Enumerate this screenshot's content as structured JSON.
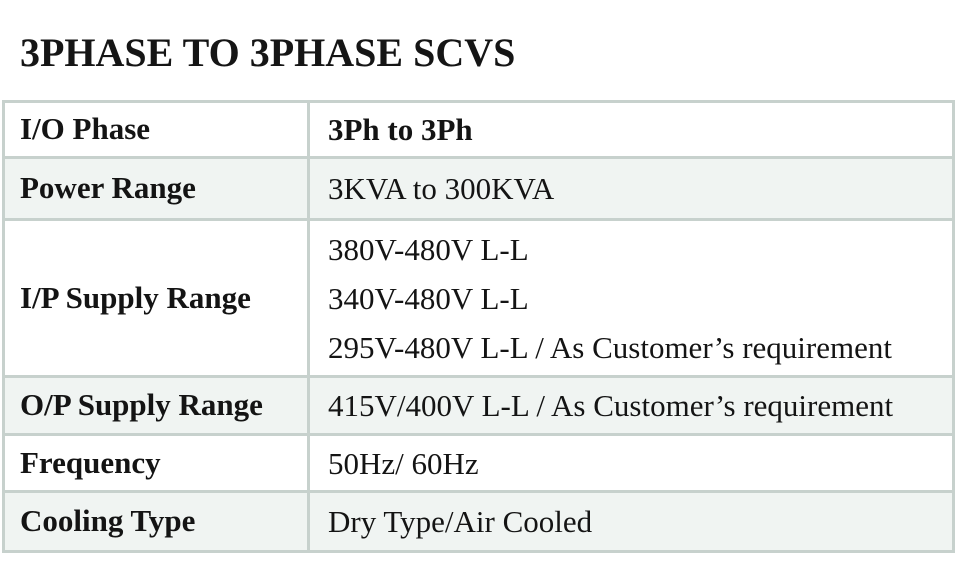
{
  "title": "3PHASE TO 3PHASE SCVS",
  "colors": {
    "border": "#c7d1cd",
    "row_alt_background": "#f0f4f2",
    "row_background": "#ffffff",
    "text": "#141414"
  },
  "table": {
    "rows": [
      {
        "label": "I/O Phase",
        "values": [
          "3Ph to 3Ph"
        ]
      },
      {
        "label": "Power Range",
        "values": [
          "3KVA to 300KVA"
        ]
      },
      {
        "label": "I/P Supply Range",
        "values": [
          "380V-480V L-L",
          "340V-480V L-L",
          "295V-480V L-L / As Customer’s requirement"
        ]
      },
      {
        "label": "O/P Supply Range",
        "values": [
          "415V/400V L-L / As Customer’s requirement"
        ]
      },
      {
        "label": "Frequency",
        "values": [
          "50Hz/ 60Hz"
        ]
      },
      {
        "label": "Cooling Type",
        "values": [
          "Dry Type/Air Cooled"
        ]
      }
    ]
  }
}
